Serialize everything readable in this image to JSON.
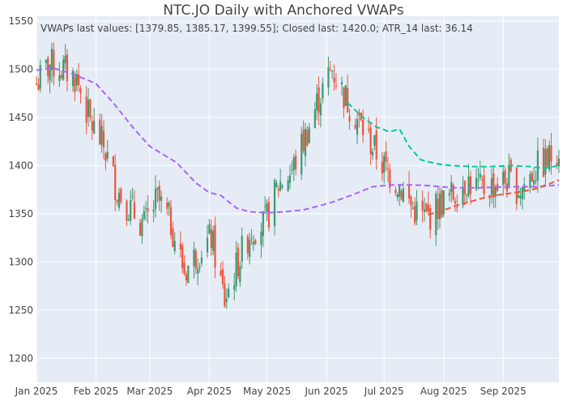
{
  "chart_data": {
    "type": "candlestick",
    "title": "NTC.JO Daily with Anchored VWAPs",
    "annotation": "VWAPs last values: [1379.85, 1385.17, 1399.55]; Closed last: 1420.0; ATR_14 last: 36.14",
    "xlabel": "",
    "ylabel": "",
    "x_range": [
      "2025-01-01",
      "2025-09-30"
    ],
    "ylim": [
      1175,
      1555
    ],
    "y_ticks": [
      1200,
      1250,
      1300,
      1350,
      1400,
      1450,
      1500,
      1550
    ],
    "x_ticks": [
      {
        "date": "2025-01-01",
        "label": "Jan 2025"
      },
      {
        "date": "2025-02-01",
        "label": "Feb 2025"
      },
      {
        "date": "2025-03-01",
        "label": "Mar 2025"
      },
      {
        "date": "2025-04-01",
        "label": "Apr 2025"
      },
      {
        "date": "2025-05-01",
        "label": "May 2025"
      },
      {
        "date": "2025-06-01",
        "label": "Jun 2025"
      },
      {
        "date": "2025-07-01",
        "label": "Jul 2025"
      },
      {
        "date": "2025-08-01",
        "label": "Aug 2025"
      },
      {
        "date": "2025-09-01",
        "label": "Sep 2025"
      }
    ],
    "grid": true,
    "colors": {
      "up": "#3d9970",
      "down": "#ef553b",
      "vwap_purple": "#ab63fa",
      "vwap_red": "#ef553b",
      "vwap_green": "#00cc96",
      "plot_bg": "#e5ecf6",
      "grid": "#ffffff"
    },
    "closes_key": [
      [
        "2025-01-01",
        1485
      ],
      [
        "2025-01-08",
        1505
      ],
      [
        "2025-01-15",
        1500
      ],
      [
        "2025-01-22",
        1490
      ],
      [
        "2025-01-29",
        1445
      ],
      [
        "2025-02-05",
        1420
      ],
      [
        "2025-02-12",
        1375
      ],
      [
        "2025-02-19",
        1355
      ],
      [
        "2025-02-26",
        1338
      ],
      [
        "2025-03-05",
        1365
      ],
      [
        "2025-03-12",
        1340
      ],
      [
        "2025-03-19",
        1290
      ],
      [
        "2025-03-26",
        1310
      ],
      [
        "2025-04-02",
        1325
      ],
      [
        "2025-04-09",
        1260
      ],
      [
        "2025-04-16",
        1300
      ],
      [
        "2025-04-23",
        1335
      ],
      [
        "2025-04-30",
        1340
      ],
      [
        "2025-05-07",
        1380
      ],
      [
        "2025-05-14",
        1395
      ],
      [
        "2025-05-21",
        1430
      ],
      [
        "2025-05-28",
        1470
      ],
      [
        "2025-06-04",
        1500
      ],
      [
        "2025-06-11",
        1470
      ],
      [
        "2025-06-18",
        1445
      ],
      [
        "2025-06-25",
        1420
      ],
      [
        "2025-07-02",
        1395
      ],
      [
        "2025-07-09",
        1380
      ],
      [
        "2025-07-16",
        1355
      ],
      [
        "2025-07-23",
        1345
      ],
      [
        "2025-07-30",
        1360
      ],
      [
        "2025-08-06",
        1370
      ],
      [
        "2025-08-13",
        1385
      ],
      [
        "2025-08-20",
        1375
      ],
      [
        "2025-08-27",
        1380
      ],
      [
        "2025-09-03",
        1385
      ],
      [
        "2025-09-10",
        1375
      ],
      [
        "2025-09-17",
        1395
      ],
      [
        "2025-09-24",
        1405
      ],
      [
        "2025-09-30",
        1420
      ]
    ],
    "series": [
      {
        "color": "#ab63fa",
        "dash": "dash",
        "points": [
          [
            "2025-01-01",
            1499
          ],
          [
            "2025-01-10",
            1501
          ],
          [
            "2025-01-20",
            1495
          ],
          [
            "2025-02-01",
            1485
          ],
          [
            "2025-02-10",
            1465
          ],
          [
            "2025-02-20",
            1440
          ],
          [
            "2025-03-01",
            1420
          ],
          [
            "2025-03-15",
            1403
          ],
          [
            "2025-03-25",
            1382
          ],
          [
            "2025-04-01",
            1372
          ],
          [
            "2025-04-07",
            1369
          ],
          [
            "2025-04-15",
            1356
          ],
          [
            "2025-04-22",
            1352
          ],
          [
            "2025-05-01",
            1351
          ],
          [
            "2025-05-10",
            1352
          ],
          [
            "2025-05-20",
            1354
          ],
          [
            "2025-05-28",
            1358
          ],
          [
            "2025-06-04",
            1362
          ],
          [
            "2025-06-15",
            1370
          ],
          [
            "2025-06-25",
            1378
          ],
          [
            "2025-07-05",
            1380
          ],
          [
            "2025-07-15",
            1380
          ],
          [
            "2025-07-25",
            1379
          ],
          [
            "2025-08-05",
            1377
          ],
          [
            "2025-08-20",
            1377
          ],
          [
            "2025-09-05",
            1378
          ],
          [
            "2025-09-20",
            1378
          ],
          [
            "2025-09-30",
            1380
          ]
        ]
      },
      {
        "color": "#ef553b",
        "dash": "dash",
        "points": [
          [
            "2025-07-24",
            1349
          ],
          [
            "2025-07-31",
            1353
          ],
          [
            "2025-08-07",
            1358
          ],
          [
            "2025-08-14",
            1362
          ],
          [
            "2025-08-21",
            1366
          ],
          [
            "2025-08-28",
            1369
          ],
          [
            "2025-09-04",
            1371
          ],
          [
            "2025-09-11",
            1373
          ],
          [
            "2025-09-18",
            1376
          ],
          [
            "2025-09-25",
            1381
          ],
          [
            "2025-09-30",
            1385
          ]
        ]
      },
      {
        "color": "#00cc96",
        "dash": "dash",
        "points": [
          [
            "2025-06-12",
            1465
          ],
          [
            "2025-06-20",
            1450
          ],
          [
            "2025-06-27",
            1440
          ],
          [
            "2025-07-04",
            1435
          ],
          [
            "2025-07-09",
            1438
          ],
          [
            "2025-07-14",
            1420
          ],
          [
            "2025-07-20",
            1406
          ],
          [
            "2025-07-28",
            1402
          ],
          [
            "2025-08-05",
            1400
          ],
          [
            "2025-08-15",
            1399
          ],
          [
            "2025-08-25",
            1399
          ],
          [
            "2025-09-05",
            1400
          ],
          [
            "2025-09-15",
            1399
          ],
          [
            "2025-09-22",
            1397
          ],
          [
            "2025-09-30",
            1400
          ]
        ]
      }
    ]
  }
}
